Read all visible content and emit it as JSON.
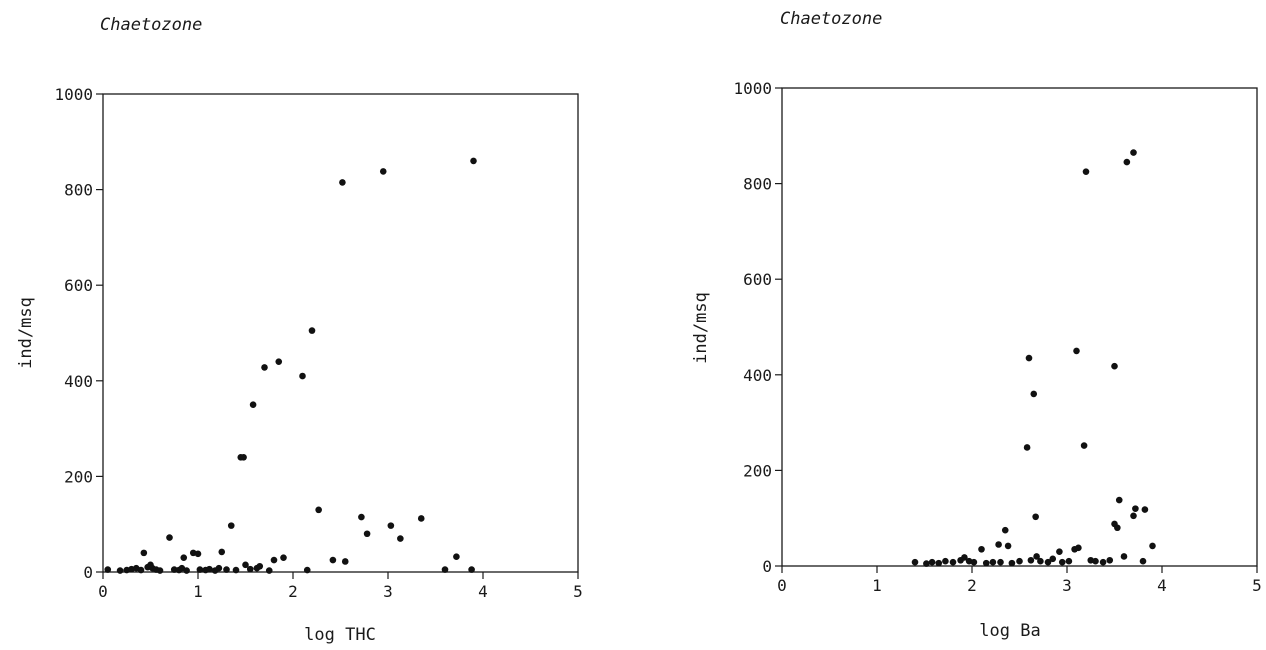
{
  "chart_data": [
    {
      "type": "scatter",
      "title": "Chaetozone",
      "xlabel": "log THC",
      "ylabel": "ind/msq",
      "xlim": [
        0,
        5
      ],
      "ylim": [
        0,
        1000
      ],
      "x_ticks": [
        "0",
        "1",
        "2",
        "3",
        "4",
        "5"
      ],
      "y_ticks": [
        "0",
        "200",
        "400",
        "600",
        "800",
        "1000"
      ],
      "grid": false,
      "points": [
        [
          0.05,
          5
        ],
        [
          0.18,
          3
        ],
        [
          0.25,
          4
        ],
        [
          0.3,
          6
        ],
        [
          0.35,
          8
        ],
        [
          0.4,
          4
        ],
        [
          0.43,
          40
        ],
        [
          0.47,
          10
        ],
        [
          0.5,
          15
        ],
        [
          0.52,
          8
        ],
        [
          0.56,
          5
        ],
        [
          0.6,
          3
        ],
        [
          0.7,
          72
        ],
        [
          0.75,
          5
        ],
        [
          0.8,
          4
        ],
        [
          0.83,
          8
        ],
        [
          0.85,
          30
        ],
        [
          0.88,
          3
        ],
        [
          0.95,
          40
        ],
        [
          1.0,
          38
        ],
        [
          1.02,
          5
        ],
        [
          1.08,
          4
        ],
        [
          1.12,
          6
        ],
        [
          1.18,
          3
        ],
        [
          1.22,
          8
        ],
        [
          1.25,
          42
        ],
        [
          1.3,
          5
        ],
        [
          1.35,
          97
        ],
        [
          1.4,
          4
        ],
        [
          1.45,
          240
        ],
        [
          1.48,
          240
        ],
        [
          1.5,
          15
        ],
        [
          1.55,
          6
        ],
        [
          1.58,
          350
        ],
        [
          1.62,
          8
        ],
        [
          1.65,
          12
        ],
        [
          1.7,
          428
        ],
        [
          1.75,
          3
        ],
        [
          1.8,
          25
        ],
        [
          1.85,
          440
        ],
        [
          1.9,
          30
        ],
        [
          2.1,
          410
        ],
        [
          2.15,
          4
        ],
        [
          2.2,
          505
        ],
        [
          2.27,
          130
        ],
        [
          2.42,
          25
        ],
        [
          2.52,
          815
        ],
        [
          2.55,
          22
        ],
        [
          2.95,
          838
        ],
        [
          2.72,
          115
        ],
        [
          2.78,
          80
        ],
        [
          3.03,
          97
        ],
        [
          3.13,
          70
        ],
        [
          3.35,
          112
        ],
        [
          3.6,
          5
        ],
        [
          3.72,
          32
        ],
        [
          3.88,
          5
        ],
        [
          3.9,
          860
        ]
      ]
    },
    {
      "type": "scatter",
      "title": "Chaetozone",
      "xlabel": "log Ba",
      "ylabel": "ind/msq",
      "xlim": [
        0,
        5
      ],
      "ylim": [
        0,
        1000
      ],
      "x_ticks": [
        "0",
        "1",
        "2",
        "3",
        "4",
        "5"
      ],
      "y_ticks": [
        "0",
        "200",
        "400",
        "600",
        "800",
        "1000"
      ],
      "grid": false,
      "points": [
        [
          1.4,
          8
        ],
        [
          1.52,
          5
        ],
        [
          1.58,
          8
        ],
        [
          1.65,
          6
        ],
        [
          1.72,
          10
        ],
        [
          1.8,
          8
        ],
        [
          1.88,
          12
        ],
        [
          1.92,
          18
        ],
        [
          1.97,
          10
        ],
        [
          2.02,
          8
        ],
        [
          2.1,
          35
        ],
        [
          2.15,
          6
        ],
        [
          2.22,
          8
        ],
        [
          2.28,
          45
        ],
        [
          2.3,
          8
        ],
        [
          2.35,
          75
        ],
        [
          2.38,
          42
        ],
        [
          2.42,
          6
        ],
        [
          2.5,
          10
        ],
        [
          2.58,
          248
        ],
        [
          2.6,
          435
        ],
        [
          2.62,
          12
        ],
        [
          2.65,
          360
        ],
        [
          2.67,
          103
        ],
        [
          2.68,
          20
        ],
        [
          2.72,
          10
        ],
        [
          2.8,
          8
        ],
        [
          2.85,
          15
        ],
        [
          2.92,
          30
        ],
        [
          2.95,
          8
        ],
        [
          3.02,
          10
        ],
        [
          3.08,
          35
        ],
        [
          3.1,
          450
        ],
        [
          3.12,
          38
        ],
        [
          3.18,
          252
        ],
        [
          3.2,
          825
        ],
        [
          3.25,
          12
        ],
        [
          3.3,
          10
        ],
        [
          3.38,
          8
        ],
        [
          3.45,
          12
        ],
        [
          3.5,
          418
        ],
        [
          3.5,
          88
        ],
        [
          3.53,
          80
        ],
        [
          3.55,
          138
        ],
        [
          3.6,
          20
        ],
        [
          3.63,
          845
        ],
        [
          3.7,
          865
        ],
        [
          3.72,
          120
        ],
        [
          3.7,
          105
        ],
        [
          3.82,
          118
        ],
        [
          3.8,
          10
        ],
        [
          3.9,
          42
        ]
      ]
    }
  ]
}
